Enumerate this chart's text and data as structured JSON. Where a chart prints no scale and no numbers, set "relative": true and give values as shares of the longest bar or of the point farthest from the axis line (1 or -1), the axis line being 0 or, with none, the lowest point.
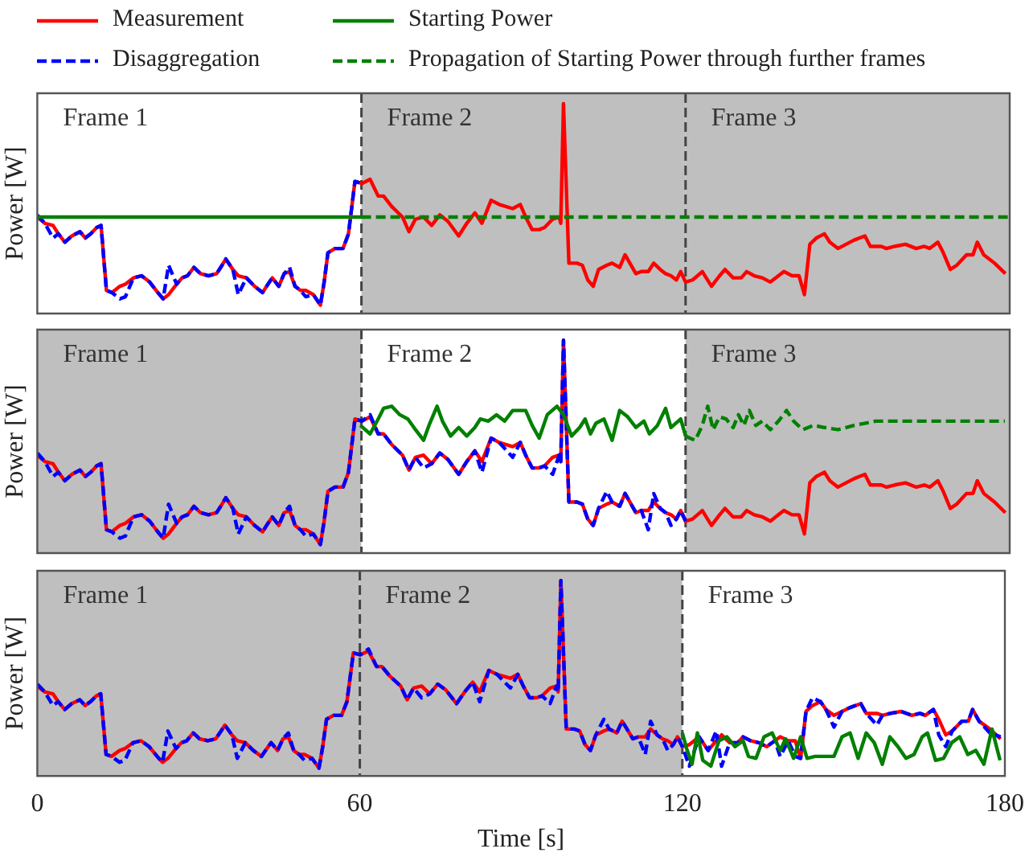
{
  "chart_data": [
    {
      "type": "line",
      "relative": true,
      "ylabel": "Power [W]",
      "xlim": [
        0,
        180
      ],
      "xticks": [
        0,
        60,
        120,
        180
      ],
      "tick_labels": false,
      "legend": "top",
      "marker": "none",
      "grid": false,
      "x": [
        0,
        1.4,
        2.9,
        3.9,
        5.1,
        6.4,
        7.9,
        8.9,
        9.9,
        11.0,
        11.8,
        12.8,
        13.8,
        15.3,
        16.3,
        17.8,
        19.3,
        20.8,
        22.3,
        23.3,
        24.3,
        25.8,
        26.8,
        27.8,
        29.0,
        30.2,
        31.7,
        33.2,
        34.2,
        34.9,
        36.2,
        37.2,
        38.7,
        40.2,
        41.7,
        42.7,
        43.5,
        44.7,
        45.7,
        46.7,
        47.7,
        48.7,
        49.7,
        51.1,
        52.4,
        53.1,
        53.8,
        55.1,
        56.6,
        57.6,
        58.8,
        60.1,
        61.6,
        63.1,
        64.1,
        65.6,
        67.6,
        68.8,
        70.0,
        71.5,
        73.0,
        74.5,
        76.0,
        78.0,
        79.5,
        81.0,
        82.3,
        84.0,
        85.5,
        88.0,
        89.4,
        90.4,
        91.6,
        92.9,
        93.9,
        95.4,
        96.6,
        96.9,
        97.4,
        98.4,
        99.9,
        100.9,
        101.9,
        102.9,
        103.9,
        105.4,
        106.4,
        107.8,
        108.8,
        110.8,
        111.8,
        113.1,
        114.1,
        115.3,
        116.3,
        117.3,
        118.3,
        119.1,
        120,
        121.3,
        123.1,
        124.8,
        126.3,
        127.3,
        128.8,
        130.3,
        131.3,
        132.7,
        134.2,
        135.7,
        137.2,
        138.2,
        139.7,
        141.0,
        142.0,
        143.0,
        144.2,
        145.7,
        146.7,
        148.2,
        149.7,
        151.2,
        153.2,
        154.2,
        156.2,
        157.2,
        158.7,
        160.7,
        162.7,
        164.2,
        165.2,
        166.7,
        167.7,
        169.0,
        170.2,
        172.0,
        173.2,
        174.0,
        175.2,
        177.2,
        179.2
      ],
      "series": [
        {
          "name": "Measurement",
          "color": "#ff0000",
          "line_style": "solid",
          "values": [
            0.46,
            0.43,
            0.42,
            0.38,
            0.34,
            0.37,
            0.39,
            0.36,
            0.38,
            0.41,
            0.42,
            0.11,
            0.1,
            0.13,
            0.14,
            0.17,
            0.18,
            0.15,
            0.1,
            0.07,
            0.09,
            0.14,
            0.17,
            0.18,
            0.22,
            0.19,
            0.18,
            0.19,
            0.23,
            0.26,
            0.21,
            0.18,
            0.17,
            0.13,
            0.1,
            0.14,
            0.17,
            0.13,
            0.19,
            0.2,
            0.13,
            0.11,
            0.11,
            0.09,
            0.04,
            0.15,
            0.29,
            0.31,
            0.31,
            0.38,
            0.63,
            0.62,
            0.64,
            0.56,
            0.56,
            0.51,
            0.46,
            0.39,
            0.45,
            0.46,
            0.42,
            0.47,
            0.44,
            0.37,
            0.43,
            0.48,
            0.43,
            0.54,
            0.52,
            0.5,
            0.52,
            0.46,
            0.4,
            0.4,
            0.41,
            0.45,
            0.46,
            0.43,
            1,
            0.24,
            0.24,
            0.23,
            0.16,
            0.13,
            0.21,
            0.23,
            0.24,
            0.22,
            0.28,
            0.19,
            0.2,
            0.2,
            0.24,
            0.21,
            0.19,
            0.18,
            0.16,
            0.2,
            0.15,
            0.16,
            0.2,
            0.13,
            0.18,
            0.21,
            0.17,
            0.17,
            0.2,
            0.18,
            0.17,
            0.15,
            0.18,
            0.2,
            0.18,
            0.18,
            0.09,
            0.33,
            0.36,
            0.38,
            0.34,
            0.31,
            0.33,
            0.35,
            0.37,
            0.32,
            0.32,
            0.31,
            0.32,
            0.33,
            0.31,
            0.32,
            0.31,
            0.34,
            0.29,
            0.21,
            0.23,
            0.28,
            0.28,
            0.34,
            0.28,
            0.24,
            0.19
          ]
        },
        {
          "name": "Disaggregation",
          "color": "#0000ff",
          "line_style": "dashed",
          "values": [
            0.47,
            0.43,
            0.36,
            0.38,
            0.34,
            0.37,
            0.39,
            0.36,
            0.38,
            0.41,
            0.42,
            0.11,
            0.1,
            0.07,
            0.08,
            0.17,
            0.18,
            0.15,
            0.1,
            0.07,
            0.23,
            0.14,
            0.17,
            0.18,
            0.22,
            0.19,
            0.18,
            0.19,
            0.23,
            0.26,
            0.21,
            0.09,
            0.17,
            0.13,
            0.1,
            0.14,
            0.17,
            0.13,
            0.19,
            0.22,
            0.13,
            0.11,
            0.08,
            0.09,
            0.04,
            0.15,
            0.29,
            0.31,
            0.31,
            0.38,
            0.63,
            0.62,
            null,
            null,
            null,
            null,
            null,
            null,
            null,
            null,
            null,
            null,
            null,
            null,
            null,
            null,
            null,
            null,
            null,
            null,
            null,
            null,
            null,
            null,
            null,
            null,
            null,
            null,
            null,
            null,
            null,
            null,
            null,
            null,
            null,
            null,
            null,
            null,
            null,
            null,
            null,
            null,
            null,
            null,
            null,
            null,
            null,
            null,
            null,
            null,
            null,
            null,
            null,
            null,
            null,
            null,
            null,
            null,
            null,
            null,
            null,
            null,
            null,
            null,
            null,
            null,
            null,
            null,
            null,
            null,
            null,
            null,
            null,
            null,
            null,
            null,
            null,
            null,
            null,
            null,
            null,
            null,
            null,
            null,
            null,
            null,
            null,
            null,
            null,
            null,
            null
          ]
        },
        {
          "name": "Starting Power",
          "color": "#008000",
          "line_style": "solid",
          "x": [
            0,
            60
          ],
          "values": [
            0.46,
            0.46
          ]
        },
        {
          "name": "Propagation of Starting Power through further frames",
          "color": "#008000",
          "line_style": "dashed",
          "x": [
            60,
            180
          ],
          "values": [
            0.46,
            0.46
          ]
        }
      ],
      "ref_lines": [
        {
          "axis": "x",
          "value": 60,
          "color": "#444444",
          "line_style": "dashed"
        },
        {
          "axis": "x",
          "value": 120,
          "color": "#444444",
          "line_style": "dashed"
        }
      ],
      "annotations": [
        "Frame 1"
      ],
      "bands": [
        {
          "axis": "x",
          "from": 60,
          "to": 120,
          "label": "Frame 2",
          "color": "#bfbfbf"
        },
        {
          "axis": "x",
          "from": 120,
          "to": 180,
          "label": "Frame 3",
          "color": "#bfbfbf"
        }
      ]
    },
    {
      "type": "line",
      "relative": true,
      "ylabel": "Power [W]",
      "xlim": [
        0,
        180
      ],
      "xticks": [
        0,
        60,
        120,
        180
      ],
      "tick_labels": false,
      "marker": "none",
      "grid": false,
      "x": [
        0,
        1.4,
        2.9,
        3.9,
        5.1,
        6.4,
        7.9,
        8.9,
        9.9,
        11.0,
        11.8,
        12.8,
        13.8,
        15.3,
        16.3,
        17.8,
        19.3,
        20.8,
        22.3,
        23.3,
        24.3,
        25.8,
        26.8,
        27.8,
        29.0,
        30.2,
        31.7,
        33.2,
        34.2,
        34.9,
        36.2,
        37.2,
        38.7,
        40.2,
        41.7,
        42.7,
        43.5,
        44.7,
        45.7,
        46.7,
        47.7,
        48.7,
        49.7,
        51.1,
        52.4,
        53.1,
        53.8,
        55.1,
        56.6,
        57.6,
        58.8,
        60.1,
        61.6,
        63.1,
        64.1,
        65.6,
        67.6,
        68.8,
        70.0,
        71.5,
        73.0,
        74.5,
        76.0,
        78.0,
        79.5,
        81.0,
        82.3,
        84.0,
        85.5,
        88.0,
        89.4,
        90.4,
        91.6,
        92.9,
        93.9,
        95.4,
        96.6,
        96.9,
        97.4,
        98.4,
        99.9,
        100.9,
        101.9,
        102.9,
        103.9,
        105.4,
        106.4,
        107.8,
        108.8,
        110.8,
        111.8,
        113.1,
        114.1,
        115.3,
        116.3,
        117.3,
        118.3,
        119.1,
        120,
        121.3,
        123.1,
        124.8,
        126.3,
        127.3,
        128.8,
        130.3,
        131.3,
        132.7,
        134.2,
        135.7,
        137.2,
        138.2,
        139.7,
        141.0,
        142.0,
        143.0,
        144.2,
        145.7,
        146.7,
        148.2,
        149.7,
        151.2,
        153.2,
        154.2,
        156.2,
        157.2,
        158.7,
        160.7,
        162.7,
        164.2,
        165.2,
        166.7,
        167.7,
        169.0,
        170.2,
        172.0,
        173.2,
        174.0,
        175.2,
        177.2,
        179.2
      ],
      "series": [
        {
          "color": "#ff0000",
          "line_style": "solid",
          "values": [
            0.46,
            0.43,
            0.42,
            0.38,
            0.34,
            0.37,
            0.39,
            0.36,
            0.38,
            0.41,
            0.42,
            0.11,
            0.1,
            0.13,
            0.14,
            0.17,
            0.18,
            0.15,
            0.1,
            0.07,
            0.09,
            0.14,
            0.17,
            0.18,
            0.22,
            0.19,
            0.18,
            0.19,
            0.23,
            0.26,
            0.21,
            0.18,
            0.17,
            0.13,
            0.1,
            0.14,
            0.17,
            0.13,
            0.19,
            0.2,
            0.13,
            0.11,
            0.11,
            0.09,
            0.04,
            0.15,
            0.29,
            0.31,
            0.31,
            0.38,
            0.63,
            0.62,
            0.64,
            0.56,
            0.56,
            0.51,
            0.46,
            0.39,
            0.45,
            0.46,
            0.42,
            0.47,
            0.44,
            0.37,
            0.43,
            0.48,
            0.43,
            0.54,
            0.52,
            0.5,
            0.52,
            0.46,
            0.4,
            0.4,
            0.41,
            0.45,
            0.46,
            0.43,
            1,
            0.24,
            0.24,
            0.23,
            0.16,
            0.13,
            0.21,
            0.23,
            0.24,
            0.22,
            0.28,
            0.19,
            0.2,
            0.2,
            0.24,
            0.21,
            0.19,
            0.18,
            0.16,
            0.2,
            0.15,
            0.16,
            0.2,
            0.13,
            0.18,
            0.21,
            0.17,
            0.17,
            0.2,
            0.18,
            0.17,
            0.15,
            0.18,
            0.2,
            0.18,
            0.18,
            0.09,
            0.33,
            0.36,
            0.38,
            0.34,
            0.31,
            0.33,
            0.35,
            0.37,
            0.32,
            0.32,
            0.31,
            0.32,
            0.33,
            0.31,
            0.32,
            0.31,
            0.34,
            0.29,
            0.21,
            0.23,
            0.28,
            0.28,
            0.34,
            0.28,
            0.24,
            0.19
          ]
        },
        {
          "color": "#0000ff",
          "line_style": "dashed",
          "values": [
            0.47,
            0.43,
            0.36,
            0.38,
            0.34,
            0.37,
            0.39,
            0.36,
            0.38,
            0.41,
            0.42,
            0.11,
            0.1,
            0.07,
            0.08,
            0.17,
            0.18,
            0.15,
            0.1,
            0.07,
            0.23,
            0.14,
            0.17,
            0.18,
            0.22,
            0.19,
            0.18,
            0.19,
            0.23,
            0.26,
            0.21,
            0.09,
            0.17,
            0.13,
            0.1,
            0.14,
            0.17,
            0.13,
            0.19,
            0.22,
            0.13,
            0.11,
            0.08,
            0.09,
            0.04,
            0.15,
            0.29,
            0.31,
            0.31,
            0.38,
            0.63,
            0.62,
            0.65,
            0.56,
            0.56,
            0.51,
            0.46,
            0.39,
            0.45,
            0.4,
            0.42,
            0.47,
            0.44,
            0.37,
            0.43,
            0.48,
            0.38,
            0.54,
            0.52,
            0.45,
            0.52,
            0.46,
            0.4,
            0.4,
            0.41,
            0.37,
            0.46,
            0.43,
            1,
            0.24,
            0.24,
            0.23,
            0.16,
            0.13,
            0.21,
            0.29,
            0.24,
            0.22,
            0.28,
            0.19,
            0.2,
            0.11,
            0.28,
            0.21,
            0.19,
            0.13,
            0.16,
            0.2,
            0.15,
            null,
            null,
            null,
            null,
            null,
            null,
            null,
            null,
            null,
            null,
            null,
            null,
            null,
            null,
            null,
            null,
            null,
            null,
            null,
            null,
            null,
            null,
            null,
            null,
            null,
            null,
            null,
            null,
            null,
            null,
            null,
            null,
            null,
            null,
            null,
            null,
            null,
            null,
            null,
            null,
            null,
            null
          ]
        },
        {
          "color": "#008000",
          "line_style": "solid",
          "x": [
            59.8,
            61.6,
            63.1,
            64.1,
            65.6,
            67.1,
            68.6,
            70.0,
            71.5,
            72.5,
            74.0,
            75.0,
            76.5,
            78.0,
            79.5,
            81.0,
            82.0,
            83.5,
            85.0,
            86.5,
            88.0,
            90.4,
            91.6,
            92.9,
            94.4,
            96.2,
            97.4,
            98.9,
            100.4,
            101.4,
            102.4,
            103.4,
            104.9,
            106.4,
            107.8,
            109.3,
            110.8,
            112.3,
            113.3,
            114.8,
            116.3,
            117.3,
            119.1,
            120
          ],
          "values": [
            0.6,
            0.56,
            0.63,
            0.68,
            0.69,
            0.65,
            0.63,
            0.58,
            0.53,
            0.6,
            0.69,
            0.62,
            0.55,
            0.59,
            0.55,
            0.59,
            0.63,
            0.62,
            0.65,
            0.62,
            0.67,
            0.67,
            0.6,
            0.54,
            0.65,
            0.69,
            0.65,
            0.55,
            0.59,
            0.63,
            0.56,
            0.61,
            0.63,
            0.53,
            0.67,
            0.64,
            0.59,
            0.62,
            0.56,
            0.6,
            0.68,
            0.59,
            0.63,
            0.55
          ]
        },
        {
          "color": "#008000",
          "line_style": "dashed",
          "x": [
            120,
            120.8,
            121.8,
            123.1,
            124.1,
            125.1,
            126.3,
            127.5,
            128.8,
            129.8,
            130.8,
            131.8,
            133.0,
            134.2,
            135.7,
            137.2,
            138.7,
            140.0,
            141.7,
            143.7,
            145.7,
            148.2,
            151.2,
            155.2,
            179.1
          ],
          "values": [
            0.55,
            0.54,
            0.53,
            0.6,
            0.69,
            0.58,
            0.64,
            0.63,
            0.59,
            0.65,
            0.6,
            0.67,
            0.6,
            0.62,
            0.58,
            0.62,
            0.67,
            0.62,
            0.58,
            0.6,
            0.59,
            0.58,
            0.6,
            0.62,
            0.62
          ]
        }
      ],
      "ref_lines": [
        {
          "axis": "x",
          "value": 60,
          "color": "#444444",
          "line_style": "dashed"
        },
        {
          "axis": "x",
          "value": 120,
          "color": "#444444",
          "line_style": "dashed"
        }
      ],
      "bands": [
        {
          "axis": "x",
          "from": 0,
          "to": 60,
          "label": "Frame 1",
          "color": "#bfbfbf"
        },
        {
          "axis": "x",
          "from": 60,
          "to": 120,
          "label": "Frame 2",
          "color": "#ffffff"
        },
        {
          "axis": "x",
          "from": 120,
          "to": 180,
          "label": "Frame 3",
          "color": "#bfbfbf"
        }
      ]
    },
    {
      "type": "line",
      "relative": true,
      "ylabel": "Power [W]",
      "xlabel": "Time [s]",
      "xlim": [
        0,
        180
      ],
      "xticks": [
        0,
        60,
        120,
        180
      ],
      "tick_labels": "x",
      "marker": "none",
      "grid": false,
      "x": [
        0,
        1.4,
        2.9,
        3.9,
        5.1,
        6.4,
        7.9,
        8.9,
        9.9,
        11.0,
        11.8,
        12.8,
        13.8,
        15.3,
        16.3,
        17.8,
        19.3,
        20.8,
        22.3,
        23.3,
        24.3,
        25.8,
        26.8,
        27.8,
        29.0,
        30.2,
        31.7,
        33.2,
        34.2,
        34.9,
        36.2,
        37.2,
        38.7,
        40.2,
        41.7,
        42.7,
        43.5,
        44.7,
        45.7,
        46.7,
        47.7,
        48.7,
        49.7,
        51.1,
        52.4,
        53.1,
        53.8,
        55.1,
        56.6,
        57.6,
        58.8,
        60.1,
        61.6,
        63.1,
        64.1,
        65.6,
        67.6,
        68.8,
        70.0,
        71.5,
        73.0,
        74.5,
        76.0,
        78.0,
        79.5,
        81.0,
        82.3,
        84.0,
        85.5,
        88.0,
        89.4,
        90.4,
        91.6,
        92.9,
        93.9,
        95.4,
        96.6,
        96.9,
        97.4,
        98.4,
        99.9,
        100.9,
        101.9,
        102.9,
        103.9,
        105.4,
        106.4,
        107.8,
        108.8,
        110.8,
        111.8,
        113.1,
        114.1,
        115.3,
        116.3,
        117.3,
        118.3,
        119.1,
        120,
        121.3,
        123.1,
        124.8,
        126.3,
        127.3,
        128.8,
        130.3,
        131.3,
        132.7,
        134.2,
        135.7,
        137.2,
        138.2,
        139.7,
        141.0,
        142.0,
        143.0,
        144.2,
        145.7,
        146.7,
        148.2,
        149.7,
        151.2,
        153.2,
        154.2,
        156.2,
        157.2,
        158.7,
        160.7,
        162.7,
        164.2,
        165.2,
        166.7,
        167.7,
        169.0,
        170.2,
        172.0,
        173.2,
        174.0,
        175.2,
        177.2,
        179.2
      ],
      "series": [
        {
          "color": "#ff0000",
          "line_style": "solid",
          "values": [
            0.46,
            0.43,
            0.42,
            0.38,
            0.34,
            0.37,
            0.39,
            0.36,
            0.38,
            0.41,
            0.42,
            0.11,
            0.1,
            0.13,
            0.14,
            0.17,
            0.18,
            0.15,
            0.1,
            0.07,
            0.09,
            0.14,
            0.17,
            0.18,
            0.22,
            0.19,
            0.18,
            0.19,
            0.23,
            0.26,
            0.21,
            0.18,
            0.17,
            0.13,
            0.1,
            0.14,
            0.17,
            0.13,
            0.19,
            0.2,
            0.13,
            0.11,
            0.11,
            0.09,
            0.04,
            0.15,
            0.29,
            0.31,
            0.31,
            0.38,
            0.63,
            0.62,
            0.64,
            0.56,
            0.56,
            0.51,
            0.46,
            0.39,
            0.45,
            0.46,
            0.42,
            0.47,
            0.44,
            0.37,
            0.43,
            0.48,
            0.43,
            0.54,
            0.52,
            0.5,
            0.52,
            0.46,
            0.4,
            0.4,
            0.41,
            0.45,
            0.46,
            0.43,
            1,
            0.24,
            0.24,
            0.23,
            0.16,
            0.13,
            0.21,
            0.23,
            0.24,
            0.22,
            0.28,
            0.19,
            0.2,
            0.2,
            0.24,
            0.21,
            0.19,
            0.18,
            0.16,
            0.2,
            0.15,
            0.16,
            0.2,
            0.13,
            0.18,
            0.21,
            0.17,
            0.17,
            0.2,
            0.18,
            0.17,
            0.15,
            0.18,
            0.2,
            0.18,
            0.18,
            0.09,
            0.33,
            0.36,
            0.38,
            0.34,
            0.31,
            0.33,
            0.35,
            0.37,
            0.32,
            0.32,
            0.31,
            0.32,
            0.33,
            0.31,
            0.32,
            0.31,
            0.34,
            0.29,
            0.21,
            0.23,
            0.28,
            0.28,
            0.34,
            0.28,
            0.24,
            0.19
          ]
        },
        {
          "color": "#0000ff",
          "line_style": "dashed",
          "values": [
            0.47,
            0.43,
            0.36,
            0.38,
            0.34,
            0.37,
            0.39,
            0.36,
            0.38,
            0.41,
            0.42,
            0.11,
            0.1,
            0.07,
            0.08,
            0.17,
            0.18,
            0.15,
            0.1,
            0.07,
            0.23,
            0.14,
            0.17,
            0.18,
            0.22,
            0.19,
            0.18,
            0.19,
            0.23,
            0.26,
            0.21,
            0.09,
            0.17,
            0.13,
            0.1,
            0.14,
            0.17,
            0.13,
            0.19,
            0.22,
            0.13,
            0.11,
            0.08,
            0.09,
            0.04,
            0.15,
            0.29,
            0.31,
            0.31,
            0.38,
            0.63,
            0.62,
            0.65,
            0.56,
            0.56,
            0.51,
            0.46,
            0.39,
            0.45,
            0.4,
            0.42,
            0.47,
            0.44,
            0.37,
            0.43,
            0.48,
            0.38,
            0.54,
            0.52,
            0.45,
            0.52,
            0.46,
            0.4,
            0.4,
            0.41,
            0.37,
            0.46,
            0.43,
            1,
            0.24,
            0.24,
            0.23,
            0.16,
            0.13,
            0.21,
            0.29,
            0.24,
            0.22,
            0.28,
            0.19,
            0.2,
            0.11,
            0.28,
            0.21,
            0.19,
            0.13,
            0.16,
            0.2,
            0.15,
            0.05,
            0.2,
            0.13,
            0.23,
            0.05,
            0.17,
            0.17,
            0.2,
            0.18,
            0.17,
            0.15,
            0.18,
            0.1,
            0.18,
            0.1,
            0.09,
            0.33,
            0.4,
            0.38,
            0.34,
            0.25,
            0.33,
            0.35,
            0.37,
            0.32,
            0.26,
            0.31,
            0.32,
            0.33,
            0.31,
            0.32,
            0.31,
            0.34,
            0.21,
            0.15,
            0.23,
            0.28,
            0.28,
            0.34,
            0.28,
            0.22,
            0.2
          ]
        },
        {
          "color": "#008000",
          "line_style": "solid",
          "x": [
            120,
            120.8,
            121.8,
            122.8,
            123.8,
            125.3,
            126.8,
            128.3,
            129.8,
            131.3,
            132.3,
            133.7,
            135.2,
            136.7,
            138.2,
            139.2,
            140.7,
            142.0,
            143.2,
            144.7,
            146.2,
            148.2,
            149.7,
            151.2,
            152.7,
            154.2,
            155.7,
            157.2,
            158.6,
            160.1,
            161.6,
            163.1,
            164.6,
            165.6,
            167.1,
            168.6,
            170.1,
            171.6,
            173.1,
            174.6,
            176.1,
            177.6,
            179.1
          ],
          "values": [
            0.22,
            0.14,
            0.06,
            0.22,
            0.08,
            0.05,
            0.18,
            0.2,
            0.15,
            0.18,
            0.1,
            0.09,
            0.2,
            0.22,
            0.13,
            0.19,
            0.09,
            0.2,
            0.09,
            0.1,
            0.1,
            0.1,
            0.2,
            0.22,
            0.09,
            0.22,
            0.17,
            0.06,
            0.2,
            0.15,
            0.09,
            0.11,
            0.2,
            0.22,
            0.08,
            0.09,
            0.17,
            0.2,
            0.11,
            0.13,
            0.06,
            0.24,
            0.08
          ]
        }
      ],
      "ref_lines": [
        {
          "axis": "x",
          "value": 60,
          "color": "#444444",
          "line_style": "dashed"
        },
        {
          "axis": "x",
          "value": 120,
          "color": "#444444",
          "line_style": "dashed"
        }
      ],
      "bands": [
        {
          "axis": "x",
          "from": 0,
          "to": 60,
          "label": "Frame 1",
          "color": "#bfbfbf"
        },
        {
          "axis": "x",
          "from": 60,
          "to": 120,
          "label": "Frame 2",
          "color": "#bfbfbf"
        },
        {
          "axis": "x",
          "from": 120,
          "to": 180,
          "label": "Frame 3",
          "color": "#ffffff"
        }
      ]
    }
  ]
}
